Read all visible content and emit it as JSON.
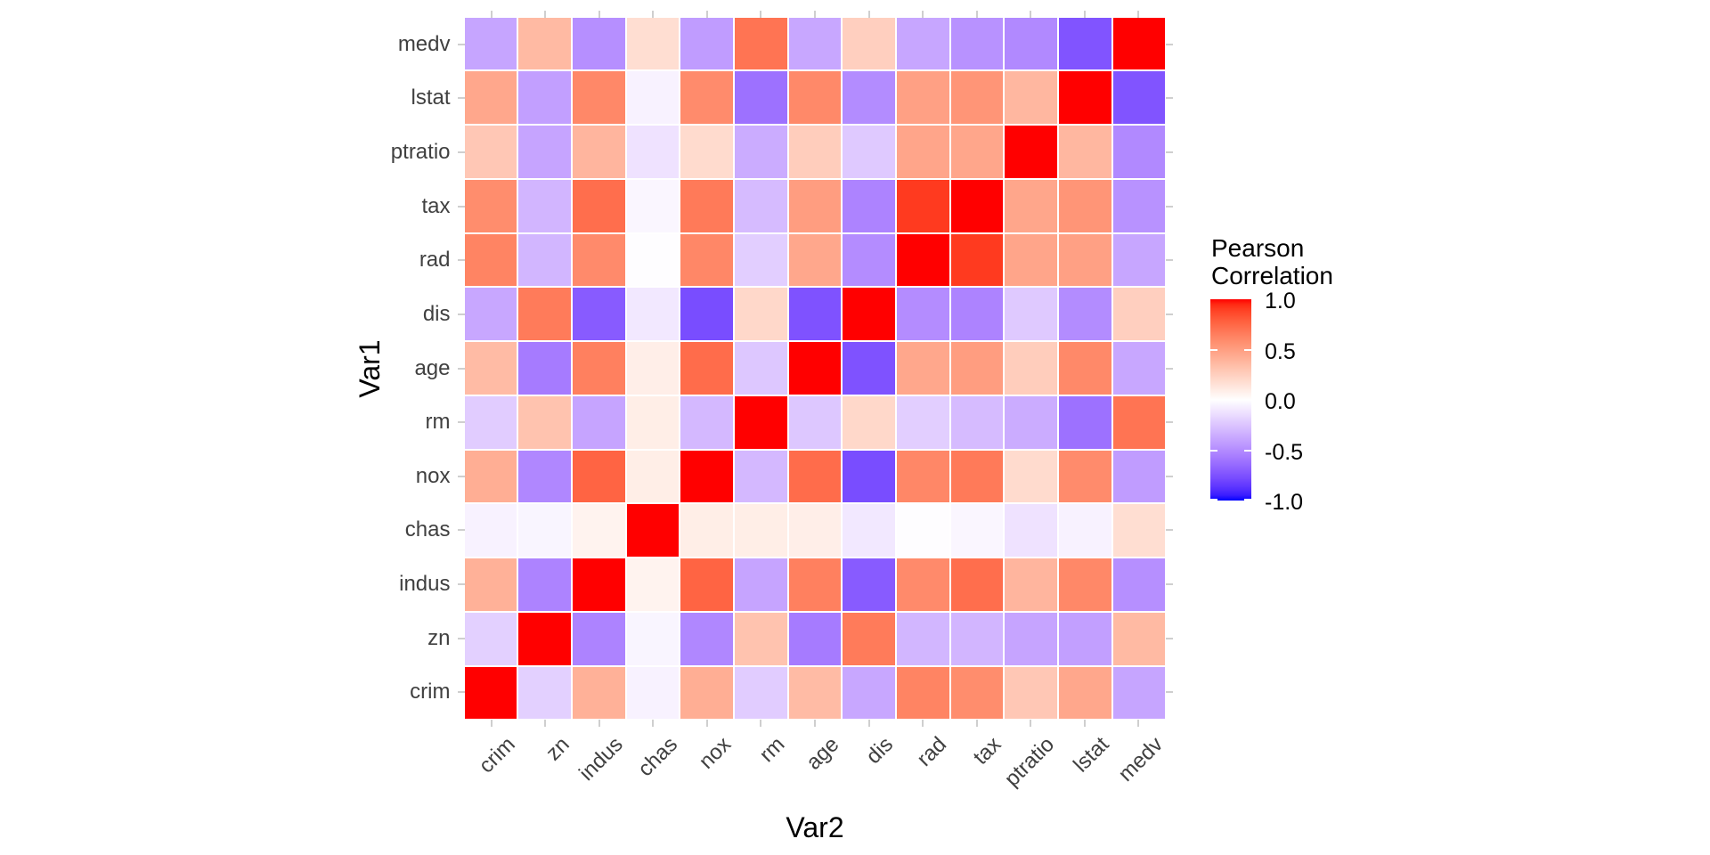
{
  "axes": {
    "x_title": "Var2",
    "y_title": "Var1",
    "x_categories": [
      "crim",
      "zn",
      "indus",
      "chas",
      "nox",
      "rm",
      "age",
      "dis",
      "rad",
      "tax",
      "ptratio",
      "lstat",
      "medv"
    ],
    "y_categories_top_to_bottom": [
      "medv",
      "lstat",
      "ptratio",
      "tax",
      "rad",
      "dis",
      "age",
      "rm",
      "nox",
      "chas",
      "indus",
      "zn",
      "crim"
    ]
  },
  "legend": {
    "title_line1": "Pearson",
    "title_line2": "Correlation",
    "tick_labels": [
      "1.0",
      "0.5",
      "0.0",
      "-0.5",
      "-1.0"
    ],
    "tick_values": [
      1.0,
      0.5,
      0.0,
      -0.5,
      -1.0
    ]
  },
  "colors": {
    "scale_high": "#FF0000",
    "scale_mid": "#FFFFFF",
    "scale_low": "#0000FF",
    "axis_tick_mark": "#CFCFCF",
    "axis_text": "#404040",
    "title_text": "#000000",
    "background": "#FFFFFF"
  },
  "chart_data": {
    "type": "heatmap",
    "title": "",
    "xlabel": "Var2",
    "ylabel": "Var1",
    "fill_legend_title": "Pearson Correlation",
    "x": [
      "crim",
      "zn",
      "indus",
      "chas",
      "nox",
      "rm",
      "age",
      "dis",
      "rad",
      "tax",
      "ptratio",
      "lstat",
      "medv"
    ],
    "y_top_to_bottom": [
      "medv",
      "lstat",
      "ptratio",
      "tax",
      "rad",
      "dis",
      "age",
      "rm",
      "nox",
      "chas",
      "indus",
      "zn",
      "crim"
    ],
    "value_range": [
      -1,
      1
    ],
    "colormap": {
      "low": "#0000FF",
      "mid": "#FFFFFF",
      "high": "#FF0000",
      "interpolation": "lab"
    },
    "matrix_rows_top_to_bottom": [
      [
        -0.388,
        0.36,
        -0.484,
        0.175,
        -0.427,
        0.695,
        -0.377,
        0.25,
        -0.382,
        -0.469,
        -0.508,
        -0.738,
        1.0
      ],
      [
        0.456,
        -0.413,
        0.604,
        -0.054,
        0.591,
        -0.614,
        0.602,
        -0.497,
        0.489,
        0.544,
        0.374,
        1.0,
        -0.738
      ],
      [
        0.29,
        -0.392,
        0.383,
        -0.122,
        0.189,
        -0.356,
        0.262,
        -0.232,
        0.465,
        0.461,
        1.0,
        0.374,
        -0.508
      ],
      [
        0.583,
        -0.315,
        0.721,
        -0.036,
        0.668,
        -0.292,
        0.506,
        -0.534,
        0.91,
        1.0,
        0.461,
        0.544,
        -0.469
      ],
      [
        0.626,
        -0.312,
        0.595,
        -0.007,
        0.611,
        -0.21,
        0.456,
        -0.495,
        1.0,
        0.91,
        0.465,
        0.489,
        -0.382
      ],
      [
        -0.38,
        0.664,
        -0.708,
        -0.099,
        -0.769,
        0.205,
        -0.748,
        1.0,
        -0.495,
        -0.534,
        -0.232,
        -0.497,
        0.25
      ],
      [
        0.353,
        -0.57,
        0.645,
        0.087,
        0.731,
        -0.24,
        1.0,
        -0.748,
        0.456,
        0.506,
        0.262,
        0.602,
        -0.377
      ],
      [
        -0.219,
        0.312,
        -0.392,
        0.091,
        -0.302,
        1.0,
        -0.24,
        0.205,
        -0.21,
        -0.292,
        -0.356,
        -0.614,
        0.695
      ],
      [
        0.421,
        -0.517,
        0.764,
        0.091,
        1.0,
        -0.302,
        0.731,
        -0.769,
        0.611,
        0.668,
        0.189,
        0.591,
        -0.427
      ],
      [
        -0.056,
        -0.043,
        0.063,
        1.0,
        0.091,
        0.091,
        0.087,
        -0.099,
        -0.007,
        -0.036,
        -0.122,
        -0.054,
        0.175
      ],
      [
        0.407,
        -0.534,
        1.0,
        0.063,
        0.764,
        -0.392,
        0.645,
        -0.708,
        0.595,
        0.721,
        0.383,
        0.604,
        -0.484
      ],
      [
        -0.2,
        1.0,
        -0.534,
        -0.043,
        -0.517,
        0.312,
        -0.57,
        0.664,
        -0.312,
        -0.315,
        -0.392,
        -0.413,
        0.36
      ],
      [
        1.0,
        -0.2,
        0.407,
        -0.056,
        0.421,
        -0.219,
        0.353,
        -0.38,
        0.626,
        0.583,
        0.29,
        0.456,
        -0.388
      ]
    ]
  }
}
